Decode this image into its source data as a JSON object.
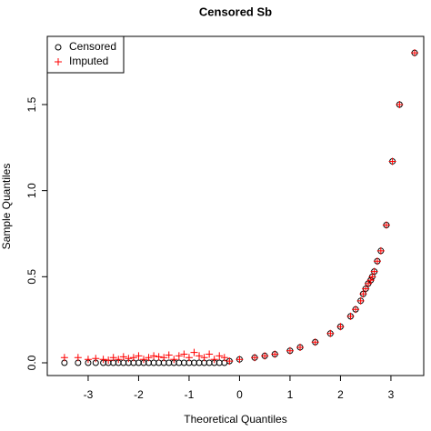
{
  "chart_data": {
    "type": "scatter",
    "title": "Censored Sb",
    "x_label": "Theoretical Quantiles",
    "y_label": "Sample Quantiles",
    "xlim": [
      -3.81,
      3.65
    ],
    "ylim": [
      -0.074,
      1.896
    ],
    "xticks": [
      -3,
      -2,
      -1,
      0,
      1,
      2,
      3
    ],
    "yticks": [
      {
        "value": 0,
        "label": "0.0"
      },
      0.5,
      {
        "value": 1,
        "label": "1.0"
      },
      1.5
    ],
    "legend": "top-left",
    "series": [
      {
        "name": "Censored",
        "color": "#000000",
        "marker": "circle",
        "x": [
          -3.47,
          -3.2,
          -3.0,
          -2.85,
          -2.7,
          -2.6,
          -2.5,
          -2.4,
          -2.3,
          -2.2,
          -2.1,
          -2.0,
          -1.9,
          -1.8,
          -1.7,
          -1.6,
          -1.5,
          -1.4,
          -1.3,
          -1.2,
          -1.1,
          -1.0,
          -0.9,
          -0.8,
          -0.7,
          -0.6,
          -0.5,
          -0.4,
          -0.3,
          -0.2,
          0,
          0.3,
          0.5,
          0.7,
          1.0,
          1.2,
          1.5,
          1.8,
          2.0,
          2.2,
          2.3,
          2.4,
          2.45,
          2.5,
          2.55,
          2.6,
          2.63,
          2.67,
          2.73,
          2.8,
          2.91,
          3.03,
          3.17,
          3.47
        ],
        "values": [
          0,
          0,
          0,
          0,
          0,
          0,
          0,
          0,
          0,
          0,
          0,
          0,
          0,
          0,
          0,
          0,
          0,
          0,
          0,
          0,
          0,
          0,
          0,
          0,
          0,
          0,
          0,
          0,
          0,
          0.01,
          0.02,
          0.03,
          0.04,
          0.05,
          0.07,
          0.09,
          0.12,
          0.17,
          0.21,
          0.27,
          0.31,
          0.36,
          0.4,
          0.43,
          0.46,
          0.48,
          0.5,
          0.53,
          0.59,
          0.65,
          0.8,
          1.17,
          1.5,
          1.8
        ]
      },
      {
        "name": "Imputed",
        "color": "#ff0000",
        "marker": "plus",
        "x": [
          -3.47,
          -3.2,
          -3.0,
          -2.85,
          -2.7,
          -2.6,
          -2.5,
          -2.4,
          -2.3,
          -2.2,
          -2.1,
          -2.0,
          -1.9,
          -1.8,
          -1.7,
          -1.6,
          -1.5,
          -1.4,
          -1.3,
          -1.2,
          -1.1,
          -1.0,
          -0.9,
          -0.8,
          -0.7,
          -0.6,
          -0.5,
          -0.4,
          -0.3,
          -0.2,
          0,
          0.3,
          0.5,
          0.7,
          1.0,
          1.2,
          1.5,
          1.8,
          2.0,
          2.2,
          2.3,
          2.4,
          2.45,
          2.5,
          2.55,
          2.6,
          2.63,
          2.67,
          2.73,
          2.8,
          2.91,
          3.03,
          3.17,
          3.47
        ],
        "values": [
          0.03,
          0.03,
          0.02,
          0.025,
          0.02,
          0.015,
          0.03,
          0.02,
          0.035,
          0.025,
          0.03,
          0.04,
          0.02,
          0.03,
          0.04,
          0.035,
          0.03,
          0.045,
          0.02,
          0.04,
          0.05,
          0.03,
          0.06,
          0.04,
          0.03,
          0.05,
          0.02,
          0.04,
          0.03,
          0.01,
          0.02,
          0.03,
          0.04,
          0.05,
          0.07,
          0.09,
          0.12,
          0.17,
          0.21,
          0.27,
          0.31,
          0.36,
          0.4,
          0.43,
          0.46,
          0.48,
          0.5,
          0.53,
          0.59,
          0.65,
          0.8,
          1.17,
          1.5,
          1.8
        ]
      }
    ]
  }
}
